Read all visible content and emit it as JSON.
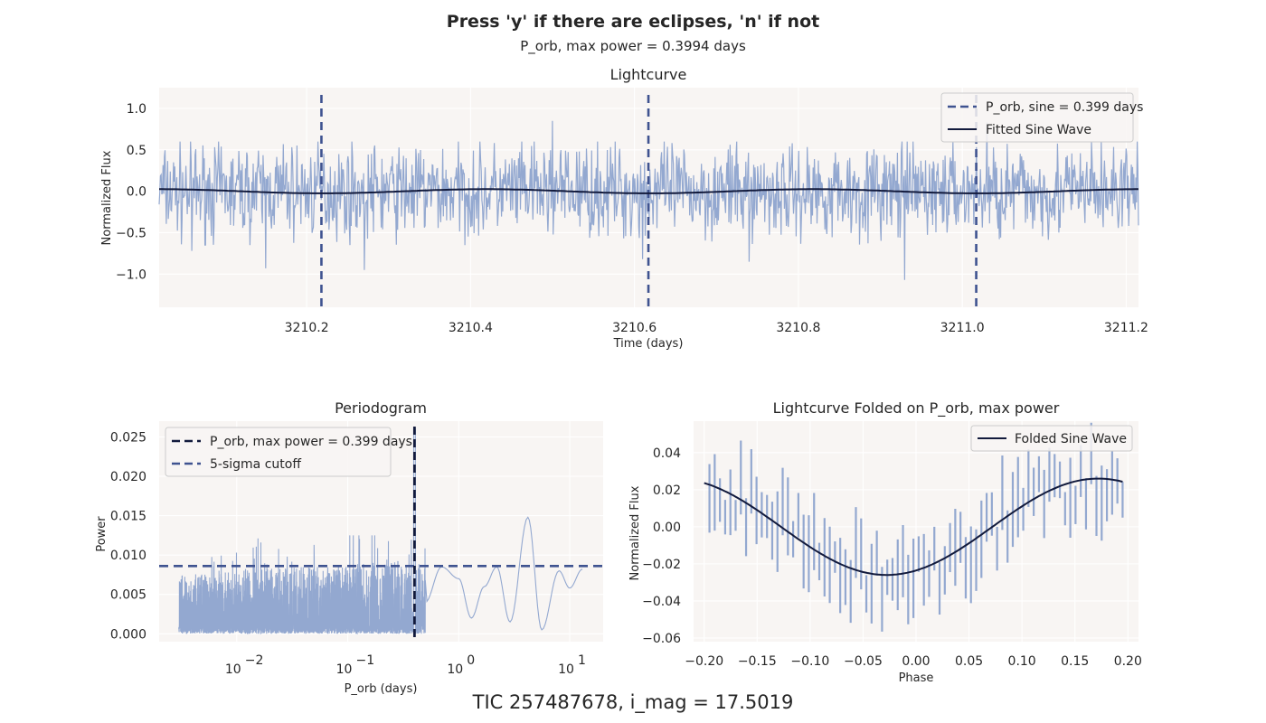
{
  "figure": {
    "suptitle": "Press 'y' if there are eclipses, 'n' if not",
    "subtitle": "P_orb, max power = 0.3994 days",
    "footer": "TIC 257487678, i_mag = 17.5019"
  },
  "colors": {
    "panel_bg": "#f8f5f3",
    "data": "#93a8d0",
    "fit": "#121a3c",
    "vline": "#3f5390"
  },
  "chart_data": [
    {
      "id": "lightcurve",
      "type": "line",
      "title": "Lightcurve",
      "xlabel": "Time (days)",
      "ylabel": "Normalized Flux",
      "xlim": [
        3210.02,
        3211.215
      ],
      "ylim": [
        -1.4,
        1.25
      ],
      "xticks": [
        3210.2,
        3210.4,
        3210.6,
        3210.8,
        3211.0,
        3211.2
      ],
      "xtick_labels": [
        "3210.2",
        "3210.4",
        "3210.6",
        "3210.8",
        "3211.0",
        "3211.2"
      ],
      "yticks": [
        -1.0,
        -0.5,
        0.0,
        0.5,
        1.0
      ],
      "ytick_labels": [
        "−1.0",
        "−0.5",
        "0.0",
        "0.5",
        "1.0"
      ],
      "grid": true,
      "legend_placement": "top-right",
      "noise_band": [
        -0.45,
        0.45
      ],
      "notable_points": [
        {
          "x": 3210.06,
          "y": -0.72
        },
        {
          "x": 3210.15,
          "y": -0.93
        },
        {
          "x": 3210.27,
          "y": -0.95
        },
        {
          "x": 3210.5,
          "y": 0.85
        },
        {
          "x": 3210.61,
          "y": -0.82
        },
        {
          "x": 3210.74,
          "y": -0.85
        },
        {
          "x": 3210.93,
          "y": -1.07
        },
        {
          "x": 3211.03,
          "y": 0.83
        }
      ],
      "sine": {
        "name": "Fitted Sine Wave",
        "amplitude": 0.025,
        "period": 0.3994,
        "peak_x": 3210.419
      },
      "vlines": {
        "name": "P_orb, sine = 0.399 days",
        "x": [
          3210.218,
          3210.617,
          3211.017
        ]
      }
    },
    {
      "id": "periodogram",
      "type": "line",
      "title": "Periodogram",
      "xlabel": "P_orb (days)",
      "ylabel": "Power",
      "xscale": "log",
      "xlim": [
        0.002,
        20
      ],
      "ylim": [
        -0.001,
        0.027
      ],
      "xticks": [
        0.01,
        0.1,
        1,
        10
      ],
      "xtick_labels": [
        "10",
        "10",
        "10",
        "10"
      ],
      "xtick_exponents": [
        "−2",
        "−1",
        "0",
        "1"
      ],
      "yticks": [
        0.0,
        0.005,
        0.01,
        0.015,
        0.02,
        0.025
      ],
      "ytick_labels": [
        "0.000",
        "0.005",
        "0.010",
        "0.015",
        "0.020",
        "0.025"
      ],
      "grid": true,
      "legend_placement": "top-left",
      "noise_start": 0.003,
      "max_power_period": 0.3994,
      "cutoff": {
        "name": "5-sigma cutoff",
        "y": 0.0086
      },
      "max_line": {
        "name": "P_orb, max power = 0.399 days",
        "x": 0.3994
      },
      "tail": [
        {
          "x": 0.5,
          "y": 0.004
        },
        {
          "x": 0.7,
          "y": 0.0085
        },
        {
          "x": 1.0,
          "y": 0.007
        },
        {
          "x": 1.3,
          "y": 0.002
        },
        {
          "x": 1.7,
          "y": 0.006
        },
        {
          "x": 2.2,
          "y": 0.0085
        },
        {
          "x": 2.9,
          "y": 0.0015
        },
        {
          "x": 4.2,
          "y": 0.0148
        },
        {
          "x": 5.6,
          "y": 0.0005
        },
        {
          "x": 8.0,
          "y": 0.008
        },
        {
          "x": 10.0,
          "y": 0.0058
        },
        {
          "x": 13.0,
          "y": 0.0082
        }
      ]
    },
    {
      "id": "folded",
      "type": "line",
      "title": "Lightcurve Folded on P_orb, max power",
      "xlabel": "Phase",
      "ylabel": "Normalized Flux",
      "xlim": [
        -0.21,
        0.21
      ],
      "ylim": [
        -0.062,
        0.057
      ],
      "xticks": [
        -0.2,
        -0.15,
        -0.1,
        -0.05,
        0.0,
        0.05,
        0.1,
        0.15,
        0.2
      ],
      "xtick_labels": [
        "−0.20",
        "−0.15",
        "−0.10",
        "−0.05",
        "0.00",
        "0.05",
        "0.10",
        "0.15",
        "0.20"
      ],
      "yticks": [
        -0.06,
        -0.04,
        -0.02,
        0.0,
        0.02,
        0.04
      ],
      "ytick_labels": [
        "−0.06",
        "−0.04",
        "−0.02",
        "0.00",
        "0.02",
        "0.04"
      ],
      "grid": true,
      "legend_placement": "top-right",
      "sine": {
        "name": "Folded Sine Wave",
        "amplitude": 0.026,
        "peak_phase": 0.172,
        "period": 0.3994
      }
    }
  ]
}
